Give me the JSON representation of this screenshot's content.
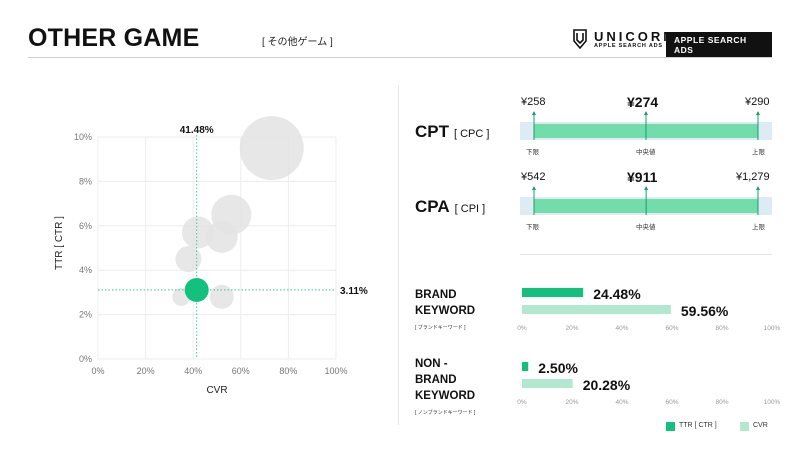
{
  "header": {
    "title": "OTHER GAME",
    "subtitle": "[ その他ゲーム ]",
    "brand": "UNICORN",
    "brand_sub": "APPLE SEARCH ADS",
    "pill": "APPLE SEARCH ADS"
  },
  "scatter": {
    "y_label": "TTR [ CTR ]",
    "x_label": "CVR",
    "y_ticks": [
      "0%",
      "2%",
      "4%",
      "6%",
      "8%",
      "10%"
    ],
    "x_ticks": [
      "0%",
      "20%",
      "40%",
      "60%",
      "80%",
      "100%"
    ],
    "ref_x_label": "41.48%",
    "ref_y_label": "3.11%"
  },
  "chart_data": {
    "type": "scatter",
    "xlabel": "CVR",
    "ylabel": "TTR [ CTR ]",
    "xlim": [
      0,
      100
    ],
    "ylim": [
      0,
      10
    ],
    "grid": true,
    "ref_lines": {
      "x": 41.48,
      "y": 3.11
    },
    "points": [
      {
        "x": 73,
        "y": 9.5,
        "size": 3.2,
        "highlight": false
      },
      {
        "x": 56,
        "y": 6.5,
        "size": 2.0,
        "highlight": false
      },
      {
        "x": 42,
        "y": 5.7,
        "size": 1.6,
        "highlight": false
      },
      {
        "x": 52,
        "y": 5.5,
        "size": 1.6,
        "highlight": false
      },
      {
        "x": 38,
        "y": 4.5,
        "size": 1.3,
        "highlight": false
      },
      {
        "x": 52,
        "y": 2.8,
        "size": 1.2,
        "highlight": false
      },
      {
        "x": 35,
        "y": 2.8,
        "size": 0.9,
        "highlight": false
      },
      {
        "x": 41.48,
        "y": 3.11,
        "size": 1.2,
        "highlight": true
      }
    ]
  },
  "cpt": {
    "label": "CPT",
    "sub": "[ CPC ]",
    "low": "¥258",
    "mid": "¥274",
    "high": "¥290",
    "low_label": "下限",
    "mid_label": "中央値",
    "high_label": "上限",
    "low_value": 258,
    "mid_value": 274,
    "high_value": 290
  },
  "cpa": {
    "label": "CPA",
    "sub": "[ CPI ]",
    "low": "¥542",
    "mid": "¥911",
    "high": "¥1,279",
    "low_label": "下限",
    "mid_label": "中央値",
    "high_label": "上限",
    "low_value": 542,
    "mid_value": 911,
    "high_value": 1279
  },
  "brand_keyword": {
    "title_1": "BRAND",
    "title_2": "KEYWORD",
    "sub": "[ ブランドキーワード ]",
    "ttr": 24.48,
    "cvr": 59.56,
    "ttr_label": "24.48%",
    "cvr_label": "59.56%"
  },
  "non_brand_keyword": {
    "title_1": "NON -",
    "title_2": "BRAND",
    "title_3": "KEYWORD",
    "sub": "[ ノンブランドキーワード ]",
    "ttr": 2.5,
    "cvr": 20.28,
    "ttr_label": "2.50%",
    "cvr_label": "20.28%"
  },
  "pct_axis": [
    "0%",
    "20%",
    "40%",
    "60%",
    "80%",
    "100%"
  ],
  "legend": {
    "ttr": "TTR [ CTR ]",
    "cvr": "CVR"
  },
  "colors": {
    "accent_green": "#14c07e",
    "light_green": "#b2e8cf",
    "range_green": "#72dcaa",
    "range_bg": "#dcebf4",
    "bubble_gray": "#e3e3e3"
  }
}
